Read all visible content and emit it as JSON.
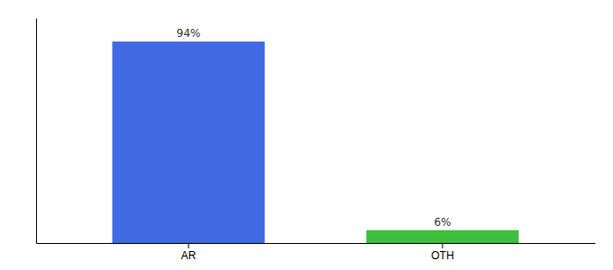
{
  "chart_data": {
    "type": "bar",
    "categories": [
      "AR",
      "OTH"
    ],
    "values": [
      94,
      6
    ],
    "value_labels": [
      "94%",
      "6%"
    ],
    "colors": [
      "#4169e1",
      "#3dbf3d"
    ],
    "ylim": [
      0,
      105
    ],
    "data_labels": true,
    "tick_labels": "x"
  }
}
